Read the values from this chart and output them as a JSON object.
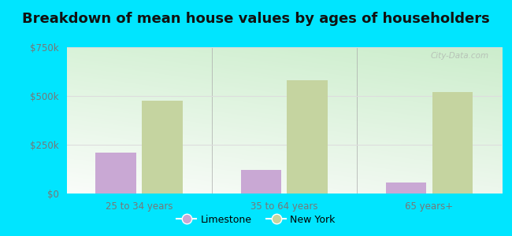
{
  "title": "Breakdown of mean house values by ages of householders",
  "categories": [
    "25 to 34 years",
    "35 to 64 years",
    "65 years+"
  ],
  "limestone_values": [
    210000,
    120000,
    55000
  ],
  "newyork_values": [
    475000,
    580000,
    520000
  ],
  "ylim": [
    0,
    750000
  ],
  "yticks": [
    0,
    250000,
    500000,
    750000
  ],
  "ytick_labels": [
    "$0",
    "$250k",
    "$500k",
    "$750k"
  ],
  "limestone_color": "#c9a8d4",
  "newyork_color": "#c5d4a0",
  "background_color": "#00e5ff",
  "legend_limestone": "Limestone",
  "legend_newyork": "New York",
  "title_fontsize": 13,
  "watermark": "City-Data.com",
  "bar_width": 0.28,
  "grid_color": "#dddddd",
  "tick_color": "#777777"
}
